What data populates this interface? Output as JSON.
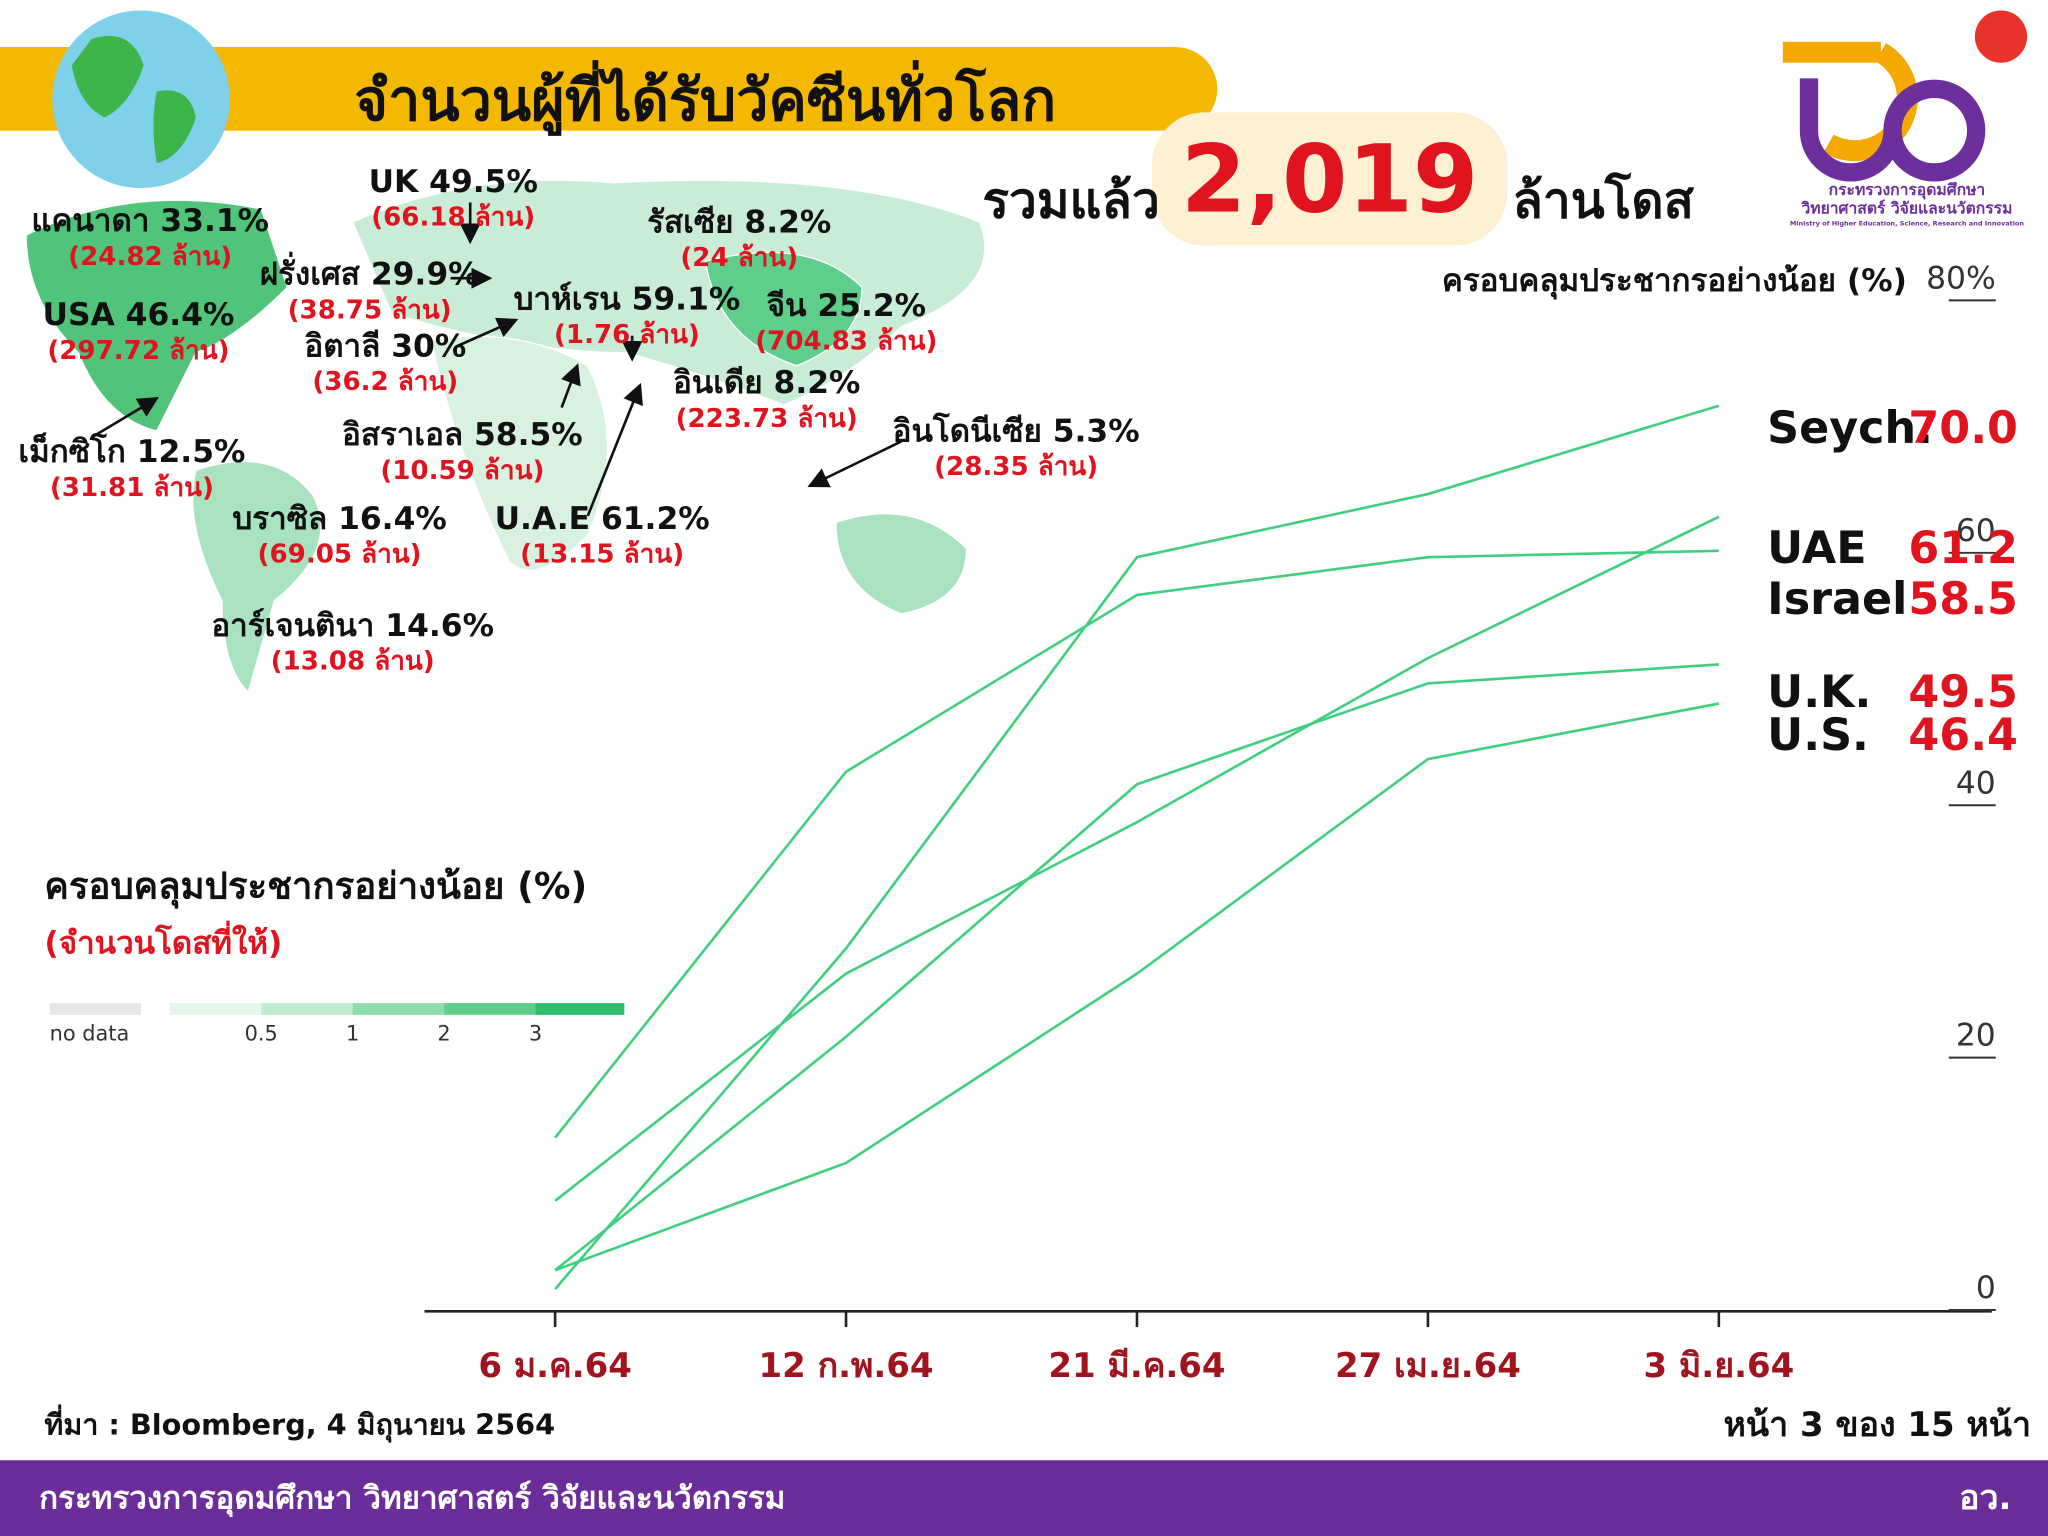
{
  "header": {
    "title": "จำนวนผู้ที่ได้รับวัคซีนทั่วโลก",
    "total_prefix": "รวมแล้ว",
    "total": "2,019",
    "total_suffix": "ล้านโดส"
  },
  "logo": {
    "line1": "กระทรวงการอุดมศึกษา",
    "line2": "วิทยาศาสตร์ วิจัยและนวัตกรรม",
    "line3": "Ministry of Higher Education, Science, Research and Innovation"
  },
  "map": {
    "labels": [
      {
        "text": "แคนาดา 33.1%",
        "doses": "(24.82 ล้าน)"
      },
      {
        "text": "UK 49.5%",
        "doses": "(66.18 ล้าน)"
      },
      {
        "text": "รัสเซีย 8.2%",
        "doses": "(24 ล้าน)"
      },
      {
        "text": "ฝรั่งเศส 29.9%",
        "doses": "(38.75 ล้าน)"
      },
      {
        "text": "USA 46.4%",
        "doses": "(297.72 ล้าน)"
      },
      {
        "text": "บาห์เรน 59.1%",
        "doses": "(1.76 ล้าน)"
      },
      {
        "text": "จีน 25.2%",
        "doses": "(704.83 ล้าน)"
      },
      {
        "text": "อิตาลี 30%",
        "doses": "(36.2 ล้าน)"
      },
      {
        "text": "อินเดีย 8.2%",
        "doses": "(223.73 ล้าน)"
      },
      {
        "text": "อิสราเอล 58.5%",
        "doses": "(10.59 ล้าน)"
      },
      {
        "text": "อินโดนีเซีย 5.3%",
        "doses": "(28.35 ล้าน)"
      },
      {
        "text": "เม็กซิโก 12.5%",
        "doses": "(31.81 ล้าน)"
      },
      {
        "text": "บราซิล 16.4%",
        "doses": "(69.05 ล้าน)"
      },
      {
        "text": "U.A.E 61.2%",
        "doses": "(13.15 ล้าน)"
      },
      {
        "text": "อาร์เจนตินา 14.6%",
        "doses": "(13.08 ล้าน)"
      }
    ],
    "legend": {
      "title": "ครอบคลุมประชากรอย่างน้อย (%)",
      "subtitle": "(จำนวนโดสที่ให้)",
      "no_data": "no data",
      "ticks": [
        0.5,
        1,
        2,
        3
      ]
    }
  },
  "chart_data": {
    "type": "line",
    "title": "ครอบคลุมประชากรอย่างน้อย (%)",
    "categories": [
      "6 ม.ค.64",
      "12 ก.พ.64",
      "21 มี.ค.64",
      "27 เม.ย.64",
      "3 มิ.ย.64"
    ],
    "ylim": [
      0,
      80
    ],
    "yticks": [
      0,
      20,
      40,
      {
        "value": 60,
        "label": "60"
      },
      {
        "value": 80,
        "label": "80%"
      }
    ],
    "series": [
      {
        "name": "Seych.",
        "color": "#3fcf7f",
        "values": [
          0,
          27,
          58,
          63,
          70
        ],
        "value_labels": [
          null,
          null,
          null,
          null,
          "70.0"
        ]
      },
      {
        "name": "UAE",
        "color": "#3fcf7f",
        "values": [
          7,
          25,
          37,
          50,
          61.2
        ],
        "value_labels": [
          null,
          null,
          null,
          null,
          "61.2"
        ]
      },
      {
        "name": "Israel",
        "color": "#3fcf7f",
        "values": [
          12,
          41,
          55,
          58,
          58.5
        ],
        "value_labels": [
          null,
          null,
          null,
          null,
          "58.5"
        ]
      },
      {
        "name": "U.K.",
        "color": "#3fcf7f",
        "values": [
          1.5,
          20,
          40,
          48,
          49.5
        ],
        "value_labels": [
          null,
          null,
          null,
          null,
          "49.5"
        ]
      },
      {
        "name": "U.S.",
        "color": "#3fcf7f",
        "values": [
          1.5,
          10,
          25,
          42,
          46.4
        ],
        "value_labels": [
          null,
          null,
          null,
          null,
          "46.4"
        ]
      }
    ]
  },
  "footer": {
    "source": "ที่มา : Bloomberg, 4 มิถุนายน 2564",
    "page": "หน้า 3 ของ 15 หน้า",
    "ministry": "กระทรวงการอุดมศึกษา วิทยาศาสตร์ วิจัยและนวัตกรรม",
    "short": "อว."
  }
}
